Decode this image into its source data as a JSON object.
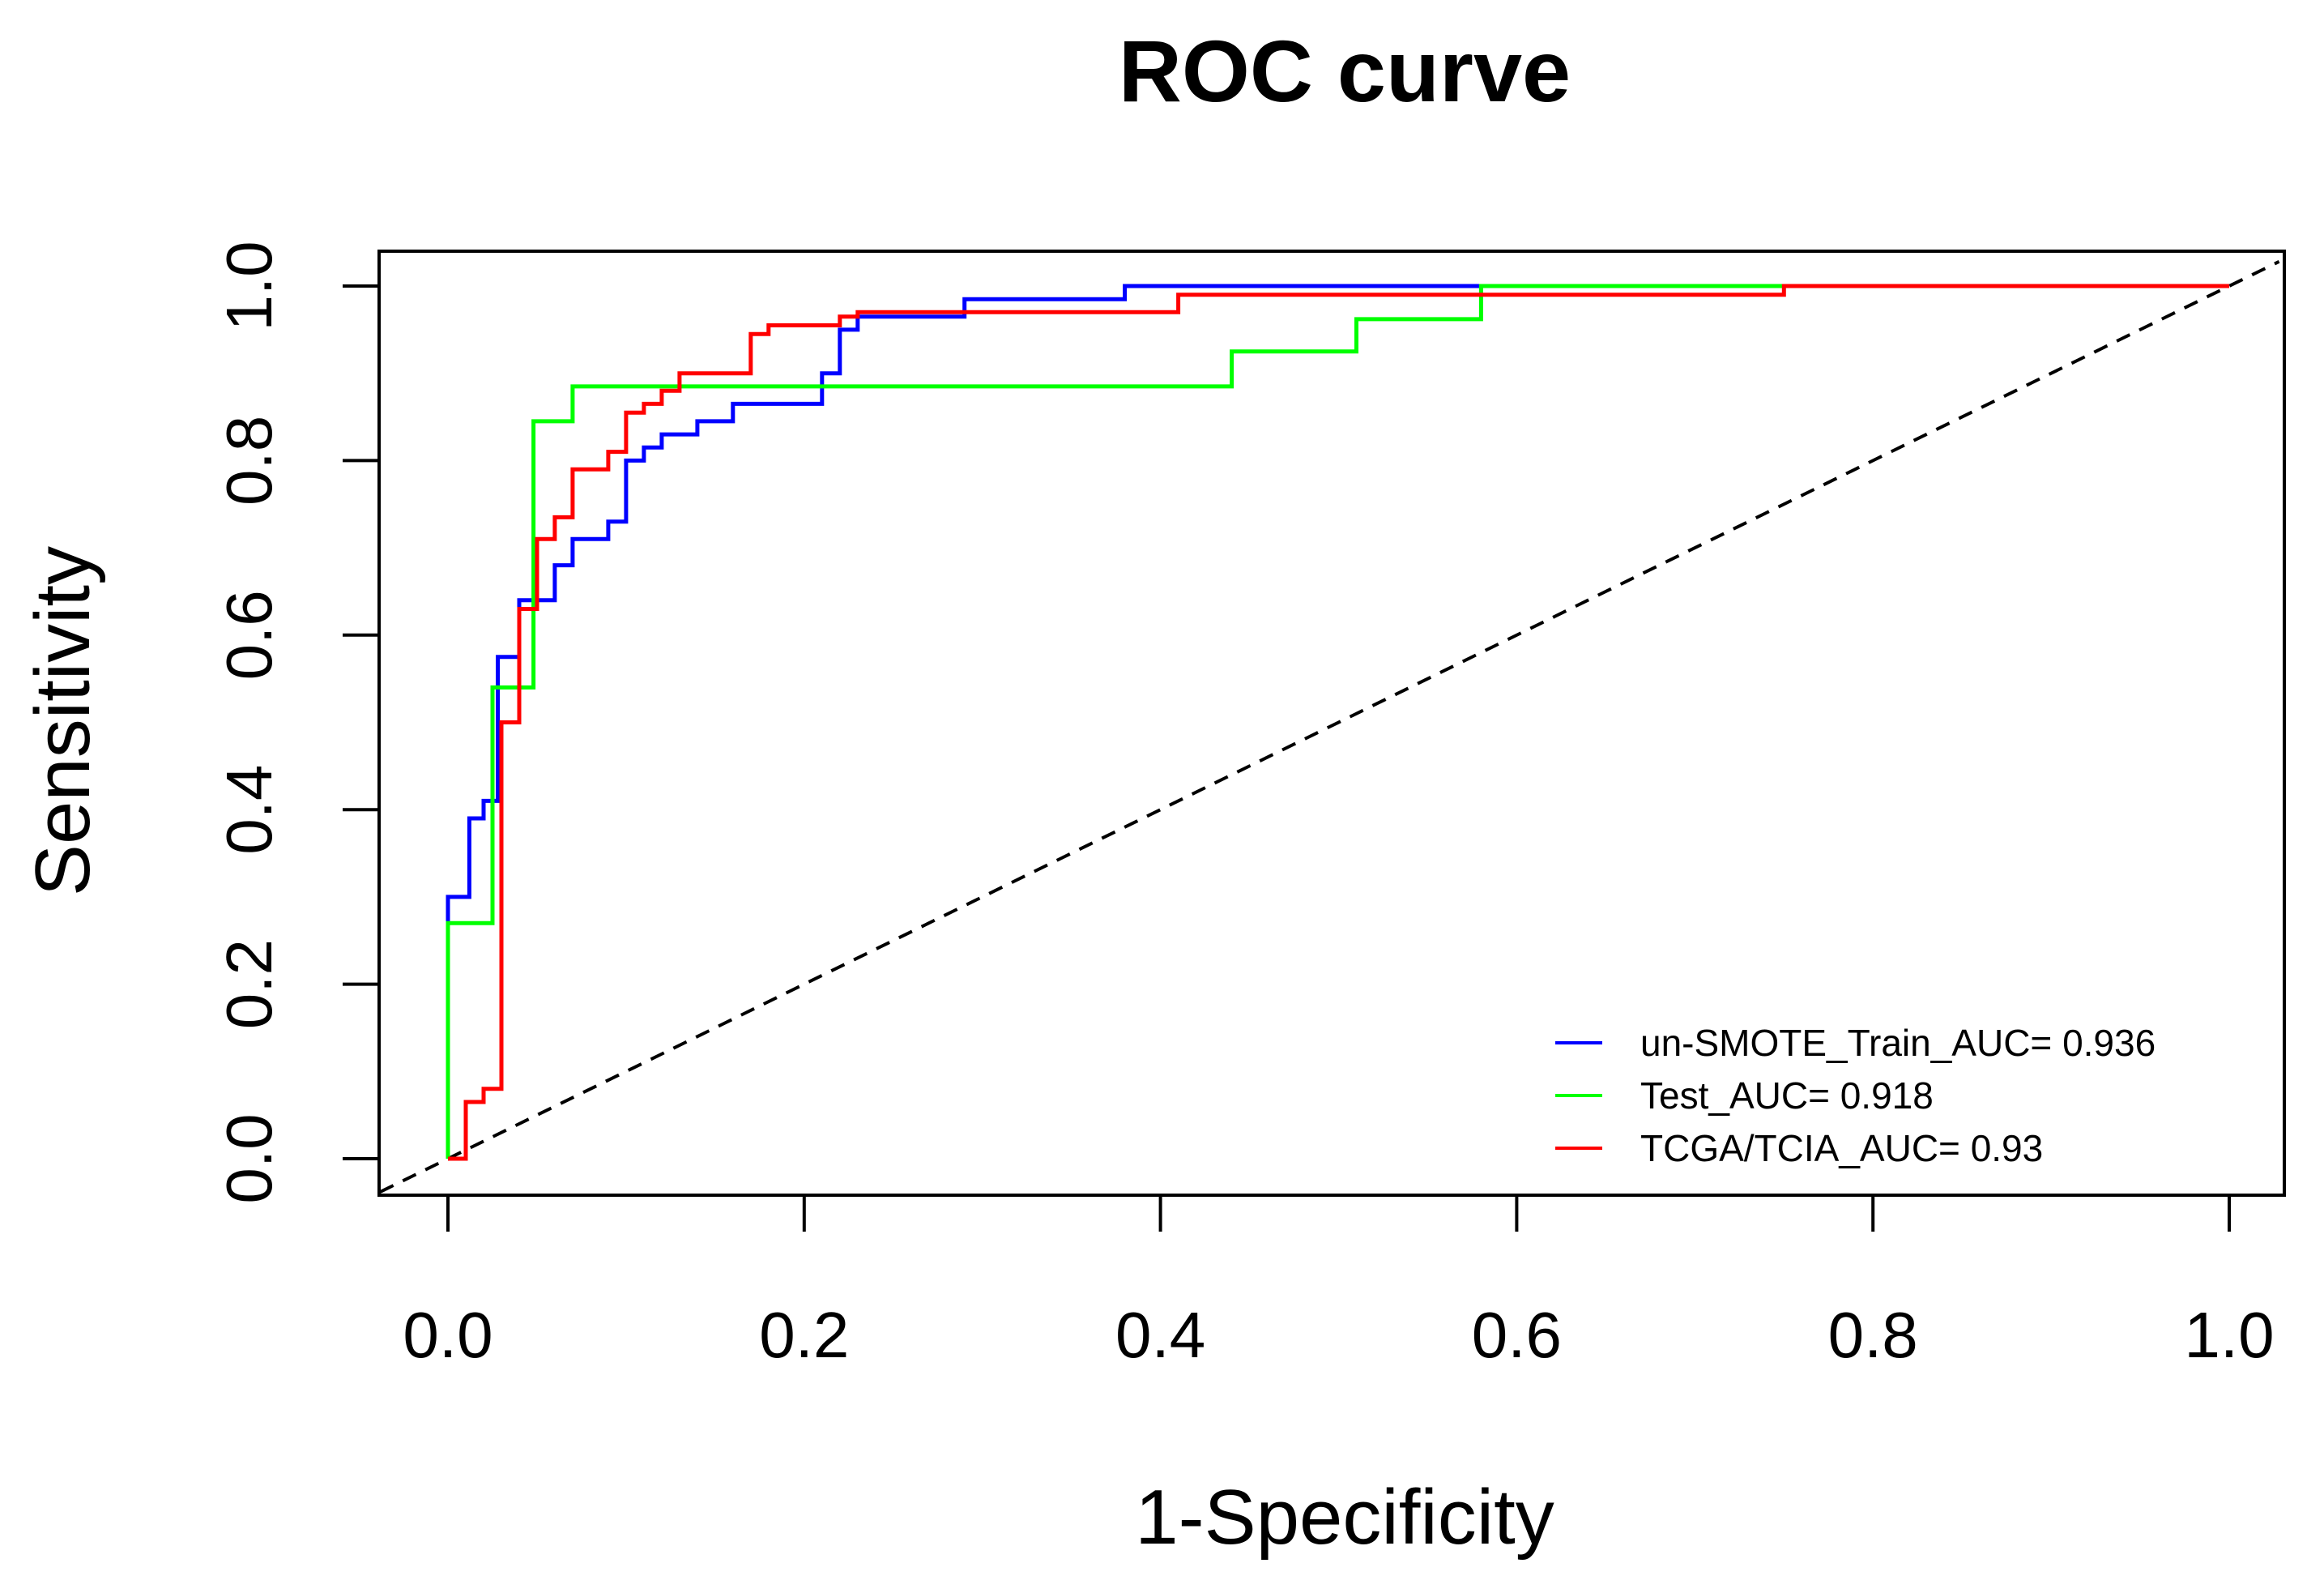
{
  "chart_data": {
    "type": "line",
    "title": "ROC curve",
    "xlabel": "1-Specificity",
    "ylabel": "Sensitivity",
    "xlim": [
      0.0,
      1.0
    ],
    "ylim": [
      0.0,
      1.0
    ],
    "xticks": [
      "0.0",
      "0.2",
      "0.4",
      "0.6",
      "0.8",
      "1.0"
    ],
    "yticks": [
      "0.0",
      "0.2",
      "0.4",
      "0.6",
      "0.8",
      "1.0"
    ],
    "legend_position": "bottom-right",
    "reference_line": {
      "style": "dashed",
      "color": "#000000",
      "from": [
        0,
        0
      ],
      "to": [
        1,
        1
      ]
    },
    "series": [
      {
        "name": "un-SMOTE_Train_AUC= 0.936",
        "color": "#0000ff",
        "x": [
          0.0,
          0.0,
          0.012,
          0.012,
          0.02,
          0.02,
          0.028,
          0.028,
          0.04,
          0.04,
          0.06,
          0.06,
          0.07,
          0.07,
          0.09,
          0.09,
          0.1,
          0.1,
          0.11,
          0.11,
          0.12,
          0.12,
          0.14,
          0.14,
          0.16,
          0.16,
          0.21,
          0.21,
          0.22,
          0.22,
          0.23,
          0.23,
          0.29,
          0.29,
          0.38,
          0.38,
          0.58
        ],
        "y": [
          0.0,
          0.3,
          0.3,
          0.39,
          0.39,
          0.41,
          0.41,
          0.575,
          0.575,
          0.64,
          0.64,
          0.68,
          0.68,
          0.71,
          0.71,
          0.73,
          0.73,
          0.8,
          0.8,
          0.815,
          0.815,
          0.83,
          0.83,
          0.845,
          0.845,
          0.865,
          0.865,
          0.9,
          0.9,
          0.95,
          0.95,
          0.965,
          0.965,
          0.985,
          0.985,
          1.0,
          1.0
        ]
      },
      {
        "name": "Test_AUC= 0.918",
        "color": "#00ff00",
        "x": [
          0.0,
          0.0,
          0.025,
          0.025,
          0.048,
          0.048,
          0.07,
          0.07,
          0.44,
          0.44,
          0.51,
          0.51,
          0.58,
          0.58,
          0.75
        ],
        "y": [
          0.0,
          0.27,
          0.27,
          0.54,
          0.54,
          0.845,
          0.845,
          0.885,
          0.885,
          0.925,
          0.925,
          0.962,
          0.962,
          1.0,
          1.0
        ]
      },
      {
        "name": "TCGA/TCIA_AUC= 0.93",
        "color": "#ff0000",
        "x": [
          0.0,
          0.01,
          0.01,
          0.02,
          0.02,
          0.03,
          0.03,
          0.04,
          0.04,
          0.05,
          0.05,
          0.06,
          0.06,
          0.07,
          0.07,
          0.09,
          0.09,
          0.1,
          0.1,
          0.11,
          0.11,
          0.12,
          0.12,
          0.13,
          0.13,
          0.17,
          0.17,
          0.18,
          0.18,
          0.22,
          0.22,
          0.23,
          0.23,
          0.41,
          0.41,
          0.75,
          0.75,
          1.0
        ],
        "y": [
          0.0,
          0.0,
          0.065,
          0.065,
          0.08,
          0.08,
          0.5,
          0.5,
          0.63,
          0.63,
          0.71,
          0.71,
          0.735,
          0.735,
          0.79,
          0.79,
          0.81,
          0.81,
          0.855,
          0.855,
          0.865,
          0.865,
          0.88,
          0.88,
          0.9,
          0.9,
          0.945,
          0.945,
          0.955,
          0.955,
          0.965,
          0.965,
          0.97,
          0.97,
          0.99,
          0.99,
          1.0,
          1.0
        ]
      }
    ]
  }
}
